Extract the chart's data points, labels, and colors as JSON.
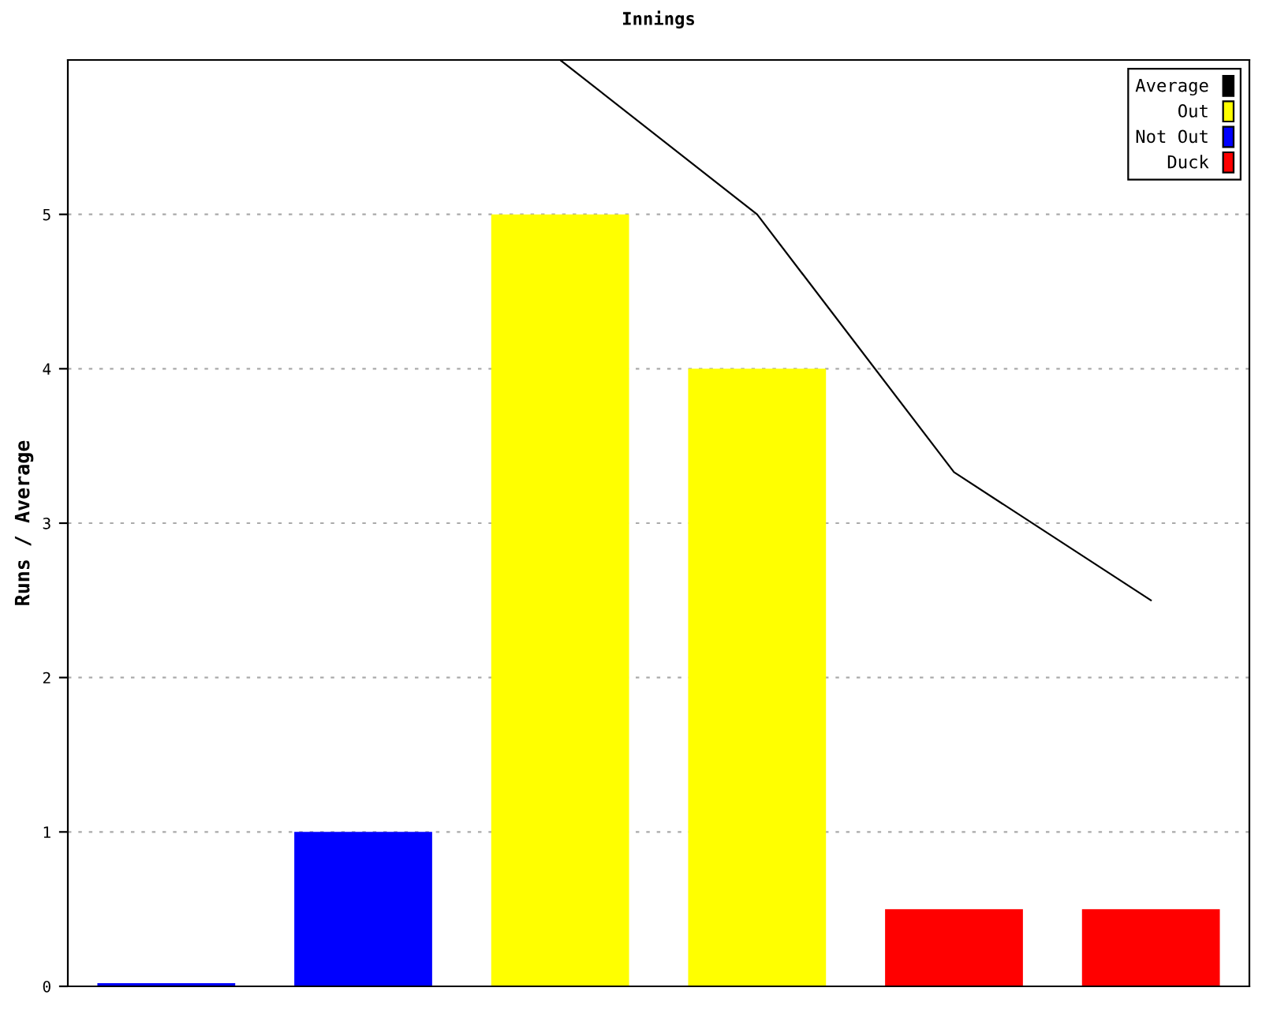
{
  "chart_data": {
    "type": "bar",
    "title": "Innings",
    "ylabel": "Runs / Average",
    "categories": [
      null,
      null,
      null,
      null,
      null,
      null
    ],
    "series": [
      {
        "name": "Average",
        "type": "line",
        "color": "#000000",
        "values": [
          null,
          null,
          6,
          5,
          3.33,
          2.5
        ]
      },
      {
        "name": "Out",
        "color": "#ffff00",
        "values": [
          null,
          null,
          5,
          4,
          null,
          null
        ]
      },
      {
        "name": "Not Out",
        "color": "#0000ff",
        "values": [
          0.02,
          1,
          null,
          null,
          null,
          null
        ]
      },
      {
        "name": "Duck",
        "color": "#ff0000",
        "values": [
          null,
          null,
          null,
          null,
          0.5,
          0.5
        ]
      }
    ],
    "ylim": [
      0,
      6
    ],
    "yticks": [
      0,
      1,
      2,
      3,
      4,
      5
    ],
    "grid": "y",
    "legend": "top right",
    "marker": "none"
  }
}
